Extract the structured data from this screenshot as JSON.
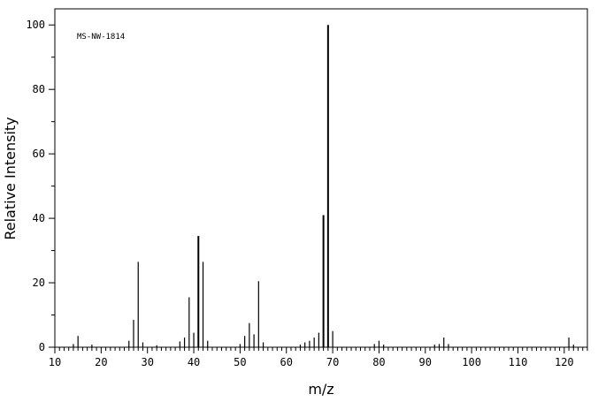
{
  "chart_data": {
    "type": "bar",
    "title": "",
    "annotation": "MS-NW-1814",
    "xlabel": "m/z",
    "ylabel": "Relative Intensity",
    "xlim": [
      10,
      125
    ],
    "ylim": [
      0,
      105
    ],
    "x_major_ticks": [
      10,
      20,
      30,
      40,
      50,
      60,
      70,
      80,
      90,
      100,
      110,
      120
    ],
    "y_major_ticks": [
      0,
      20,
      40,
      60,
      80,
      100
    ],
    "grid": false,
    "legend": "none",
    "peaks": [
      {
        "mz": 14,
        "intensity": 1.0
      },
      {
        "mz": 15,
        "intensity": 3.5
      },
      {
        "mz": 18,
        "intensity": 0.8
      },
      {
        "mz": 26,
        "intensity": 2.0
      },
      {
        "mz": 27,
        "intensity": 8.5
      },
      {
        "mz": 28,
        "intensity": 26.5
      },
      {
        "mz": 29,
        "intensity": 1.5
      },
      {
        "mz": 32,
        "intensity": 0.6
      },
      {
        "mz": 37,
        "intensity": 1.8
      },
      {
        "mz": 38,
        "intensity": 3.0
      },
      {
        "mz": 39,
        "intensity": 15.5
      },
      {
        "mz": 40,
        "intensity": 4.5
      },
      {
        "mz": 41,
        "intensity": 34.5
      },
      {
        "mz": 42,
        "intensity": 26.5
      },
      {
        "mz": 43,
        "intensity": 2.0
      },
      {
        "mz": 50,
        "intensity": 1.0
      },
      {
        "mz": 51,
        "intensity": 3.5
      },
      {
        "mz": 52,
        "intensity": 7.5
      },
      {
        "mz": 53,
        "intensity": 4.0
      },
      {
        "mz": 54,
        "intensity": 20.5
      },
      {
        "mz": 55,
        "intensity": 1.5
      },
      {
        "mz": 63,
        "intensity": 0.8
      },
      {
        "mz": 64,
        "intensity": 1.5
      },
      {
        "mz": 65,
        "intensity": 2.0
      },
      {
        "mz": 66,
        "intensity": 3.0
      },
      {
        "mz": 67,
        "intensity": 4.5
      },
      {
        "mz": 68,
        "intensity": 41.0
      },
      {
        "mz": 69,
        "intensity": 100.0
      },
      {
        "mz": 70,
        "intensity": 5.0
      },
      {
        "mz": 79,
        "intensity": 1.0
      },
      {
        "mz": 80,
        "intensity": 2.0
      },
      {
        "mz": 81,
        "intensity": 0.8
      },
      {
        "mz": 92,
        "intensity": 0.8
      },
      {
        "mz": 93,
        "intensity": 1.0
      },
      {
        "mz": 94,
        "intensity": 3.0
      },
      {
        "mz": 95,
        "intensity": 1.0
      },
      {
        "mz": 121,
        "intensity": 3.0
      },
      {
        "mz": 122,
        "intensity": 0.8
      }
    ]
  }
}
